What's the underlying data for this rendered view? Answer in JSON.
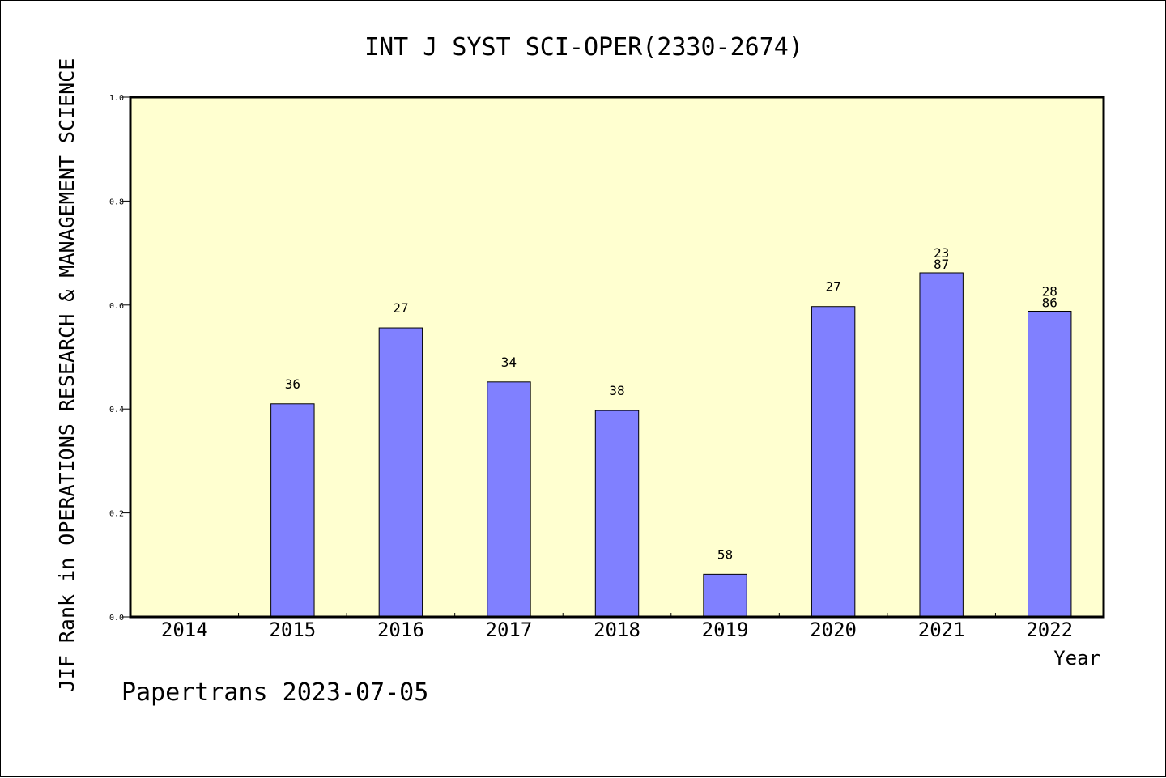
{
  "chart_data": {
    "type": "bar",
    "title": "INT J SYST SCI-OPER(2330-2674)",
    "ylabel": "JIF Rank in OPERATIONS RESEARCH & MANAGEMENT SCIENCE",
    "xlabel": "Year",
    "categories": [
      "2014",
      "2015",
      "2016",
      "2017",
      "2018",
      "2019",
      "2020",
      "2021",
      "2022"
    ],
    "values": [
      null,
      0.41,
      0.556,
      0.452,
      0.397,
      0.082,
      0.597,
      0.662,
      0.588
    ],
    "bar_labels": [
      null,
      [
        "36"
      ],
      [
        "27"
      ],
      [
        "34"
      ],
      [
        "38"
      ],
      [
        "58"
      ],
      [
        "27"
      ],
      [
        "23",
        "87"
      ],
      [
        "28",
        "86"
      ]
    ],
    "ylim": [
      0,
      1.0
    ],
    "yticks": [
      "0.0",
      "0.2",
      "0.4",
      "0.6",
      "0.8",
      "1.0"
    ],
    "ytick_values": [
      0,
      0.2,
      0.4,
      0.6,
      0.8,
      1.0
    ],
    "grid": false,
    "colors": {
      "plot_background": "#ffffd0",
      "bar_fill": "#8080ff",
      "bar_stroke": "#000000",
      "axis": "#000000"
    }
  },
  "footer": "Papertrans 2023-07-05"
}
